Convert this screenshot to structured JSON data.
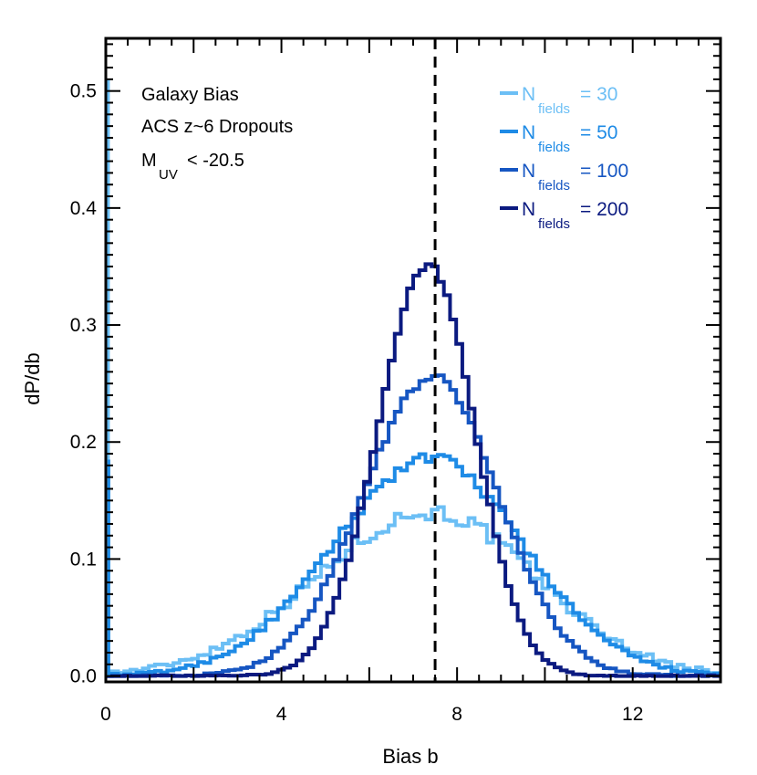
{
  "chart_data": {
    "type": "histogram",
    "title": "",
    "xlabel": "Bias b",
    "ylabel": "dP/db",
    "xlim": [
      0,
      14
    ],
    "ylim": [
      -0.005,
      0.545
    ],
    "xticks": [
      0,
      4,
      8,
      12
    ],
    "xtick_labels": [
      "0",
      "4",
      "8",
      "12"
    ],
    "yticks": [
      0.0,
      0.1,
      0.2,
      0.3,
      0.4,
      0.5
    ],
    "ytick_labels": [
      "0.0",
      "0.1",
      "0.2",
      "0.3",
      "0.4",
      "0.5"
    ],
    "reference_line": {
      "x": 7.5,
      "style": "dashed",
      "color": "#000000"
    },
    "annotations": {
      "line1": "Galaxy Bias",
      "line2": "ACS z~6 Dropouts",
      "line3_main": "M",
      "line3_sub": "UV",
      "line3_rest": "< -20.5"
    },
    "legend_position": "top-right",
    "spike": {
      "x": 0.05,
      "color_30": "#6cbff5",
      "height_30": 0.51,
      "color_50": "#1e8be6",
      "height_50": 0.185
    },
    "series": [
      {
        "name": "N_fields = 30",
        "legend_main": "N",
        "legend_sub": "fields",
        "legend_value": "= 30",
        "color": "#6cbff5",
        "mean": 7.4,
        "sigma_left": 2.6,
        "sigma_right": 2.4,
        "peak": 0.14,
        "noise": 0.007,
        "tail_floor": 0.0
      },
      {
        "name": "N_fields = 50",
        "legend_main": "N",
        "legend_sub": "fields",
        "legend_value": "= 50",
        "color": "#1e8be6",
        "mean": 7.4,
        "sigma_left": 2.2,
        "sigma_right": 2.1,
        "peak": 0.186,
        "noise": 0.005,
        "tail_floor": 0.0
      },
      {
        "name": "N_fields = 100",
        "legend_main": "N",
        "legend_sub": "fields",
        "legend_value": "= 100",
        "color": "#1656c2",
        "mean": 7.45,
        "sigma_left": 1.6,
        "sigma_right": 1.5,
        "peak": 0.255,
        "noise": 0.004,
        "tail_floor": 0.0
      },
      {
        "name": "N_fields = 200",
        "legend_main": "N",
        "legend_sub": "fields",
        "legend_value": "= 200",
        "color": "#0b1a80",
        "mean": 7.35,
        "sigma_left": 1.15,
        "sigma_right": 1.05,
        "peak": 0.352,
        "noise": 0.003,
        "tail_floor": 0.0
      }
    ]
  }
}
